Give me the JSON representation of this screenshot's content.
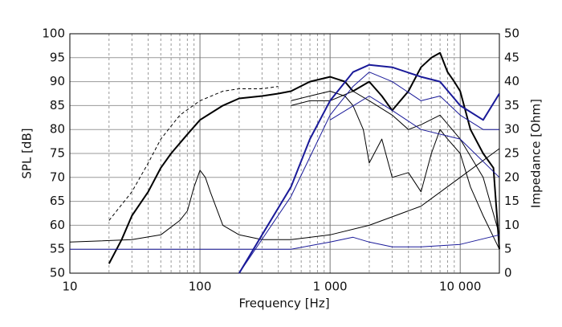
{
  "chart_data": {
    "type": "line",
    "xlabel": "Frequency [Hz]",
    "ylabel": "SPL [dB]",
    "y2label": "Impedance [Ohm]",
    "xscale": "log",
    "grid": true,
    "minor_grid": true,
    "xlim": [
      10,
      20000
    ],
    "xticks": [
      10,
      100,
      {
        "value": 1000,
        "label": "1 000"
      },
      {
        "value": 10000,
        "label": "10 000"
      }
    ],
    "ylim": [
      50,
      100
    ],
    "yticks": [
      50,
      55,
      60,
      65,
      70,
      75,
      80,
      85,
      90,
      95,
      100
    ],
    "y2lim": [
      0,
      50
    ],
    "y2ticks": [
      0,
      5,
      10,
      15,
      20,
      25,
      30,
      35,
      40,
      45,
      50
    ],
    "series": [
      {
        "color": "#000000",
        "width": 2,
        "x": [
          20,
          25,
          30,
          40,
          50,
          60,
          80,
          100,
          150,
          200,
          300,
          400,
          500,
          700,
          1000,
          1300,
          1500,
          2000,
          2500,
          3000,
          4000,
          5000,
          6000,
          7000,
          8000,
          9000,
          10000,
          12000,
          15000,
          18000,
          20000
        ],
        "values": [
          52,
          57,
          62,
          67,
          72,
          75,
          79,
          82,
          85,
          86.5,
          87,
          87.5,
          88,
          90,
          91,
          90,
          88,
          90,
          87,
          84,
          88,
          93,
          95,
          96,
          92,
          90,
          88,
          80,
          75,
          72,
          55
        ]
      },
      {
        "color": "#000000",
        "width": 1,
        "dash": true,
        "x": [
          20,
          30,
          40,
          50,
          70,
          100,
          150,
          200,
          300,
          400
        ],
        "values": [
          61,
          67,
          73,
          78,
          83,
          86,
          88,
          88.5,
          88.5,
          89
        ]
      },
      {
        "color": "#000000",
        "width": 1,
        "x": [
          500,
          700,
          1000,
          1300,
          1500,
          1800,
          2000,
          2500,
          3000,
          4000,
          5000,
          6000,
          7000,
          8000,
          10000,
          12000,
          15000,
          20000
        ],
        "values": [
          86,
          87,
          88,
          87,
          85,
          80,
          73,
          78,
          70,
          71,
          67,
          75,
          80,
          78,
          75,
          68,
          62,
          55
        ]
      },
      {
        "color": "#000000",
        "width": 1,
        "x": [
          500,
          700,
          1000,
          1500,
          2000,
          3000,
          4000,
          5000,
          7000,
          10000,
          15000,
          20000
        ],
        "values": [
          85,
          86,
          86,
          88,
          86,
          83,
          80,
          81,
          83,
          78,
          70,
          58
        ]
      },
      {
        "color": "#000000",
        "width": 1,
        "axis": "y2",
        "x": [
          10,
          30,
          50,
          70,
          80,
          90,
          100,
          110,
          120,
          150,
          200,
          300,
          500,
          1000,
          2000,
          5000,
          10000,
          20000
        ],
        "values": [
          6.5,
          7,
          8,
          11,
          13,
          18,
          21.5,
          20,
          17,
          10,
          8,
          7,
          7,
          8,
          10,
          14,
          20,
          26
        ]
      },
      {
        "color": "#1a1a99",
        "width": 1,
        "axis": "y2",
        "x": [
          10,
          500,
          1000,
          1500,
          2000,
          3000,
          5000,
          10000,
          20000
        ],
        "values": [
          5,
          5,
          6.5,
          7.5,
          6.5,
          5.5,
          5.5,
          6,
          8
        ]
      },
      {
        "color": "#1a1a99",
        "width": 2,
        "x": [
          200,
          300,
          500,
          700,
          1000,
          1500,
          2000,
          3000,
          5000,
          7000,
          10000,
          15000,
          20000
        ],
        "values": [
          50,
          58,
          68,
          78,
          86,
          92,
          93.5,
          93,
          91,
          90,
          85,
          82,
          87.5
        ]
      },
      {
        "color": "#1a1a99",
        "width": 1,
        "x": [
          200,
          500,
          1000,
          1500,
          2000,
          3000,
          5000,
          7000,
          10000,
          15000,
          20000
        ],
        "values": [
          50,
          66,
          83,
          89,
          92,
          90,
          86,
          87,
          83,
          80,
          80
        ]
      },
      {
        "color": "#1a1a99",
        "width": 1,
        "x": [
          1000,
          2000,
          3000,
          5000,
          10000,
          20000
        ],
        "values": [
          82,
          87,
          84,
          80,
          78,
          70
        ]
      }
    ]
  }
}
